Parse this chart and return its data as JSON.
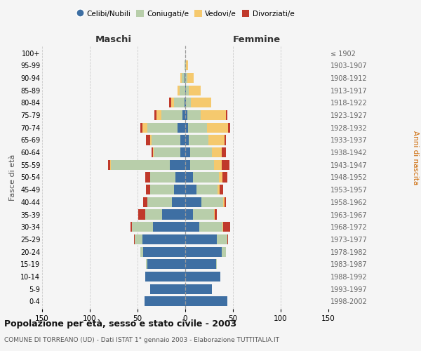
{
  "age_groups": [
    "0-4",
    "5-9",
    "10-14",
    "15-19",
    "20-24",
    "25-29",
    "30-34",
    "35-39",
    "40-44",
    "45-49",
    "50-54",
    "55-59",
    "60-64",
    "65-69",
    "70-74",
    "75-79",
    "80-84",
    "85-89",
    "90-94",
    "95-99",
    "100+"
  ],
  "birth_years": [
    "1998-2002",
    "1993-1997",
    "1988-1992",
    "1983-1987",
    "1978-1982",
    "1973-1977",
    "1968-1972",
    "1963-1967",
    "1958-1962",
    "1953-1957",
    "1948-1952",
    "1943-1947",
    "1938-1942",
    "1933-1937",
    "1928-1932",
    "1923-1927",
    "1918-1922",
    "1913-1917",
    "1908-1912",
    "1903-1907",
    "≤ 1902"
  ],
  "maschi": {
    "celibi": [
      43,
      37,
      42,
      40,
      44,
      45,
      34,
      24,
      14,
      12,
      10,
      16,
      5,
      5,
      8,
      3,
      1,
      0,
      1,
      0,
      0
    ],
    "coniugati": [
      0,
      0,
      0,
      1,
      3,
      8,
      22,
      18,
      26,
      25,
      27,
      62,
      28,
      30,
      32,
      22,
      11,
      6,
      3,
      1,
      0
    ],
    "vedovi": [
      0,
      0,
      0,
      0,
      0,
      0,
      0,
      0,
      0,
      0,
      0,
      1,
      1,
      2,
      5,
      5,
      3,
      2,
      1,
      0,
      0
    ],
    "divorziati": [
      0,
      0,
      0,
      0,
      0,
      1,
      1,
      7,
      4,
      4,
      5,
      2,
      1,
      4,
      2,
      2,
      2,
      0,
      0,
      0,
      0
    ]
  },
  "femmine": {
    "nubili": [
      44,
      28,
      37,
      32,
      38,
      33,
      15,
      8,
      17,
      12,
      8,
      5,
      5,
      4,
      3,
      2,
      1,
      1,
      0,
      0,
      0
    ],
    "coniugate": [
      0,
      0,
      0,
      1,
      5,
      11,
      24,
      22,
      23,
      22,
      27,
      25,
      23,
      20,
      20,
      14,
      5,
      3,
      2,
      1,
      0
    ],
    "vedove": [
      0,
      0,
      0,
      0,
      0,
      0,
      1,
      1,
      1,
      2,
      4,
      8,
      10,
      17,
      22,
      27,
      21,
      12,
      7,
      2,
      0
    ],
    "divorziate": [
      0,
      0,
      0,
      0,
      0,
      1,
      7,
      2,
      2,
      4,
      5,
      8,
      5,
      2,
      2,
      1,
      0,
      0,
      0,
      0,
      0
    ]
  },
  "colors": {
    "celibi": "#3e6fa3",
    "coniugati": "#b8ceaa",
    "vedovi": "#f5c96e",
    "divorziati": "#c0392b"
  },
  "xlim": 150,
  "title": "Popolazione per età, sesso e stato civile - 2003",
  "subtitle": "COMUNE DI TORREANO (UD) - Dati ISTAT 1° gennaio 2003 - Elaborazione TUTTITALIA.IT",
  "ylabel_left": "Fasce di età",
  "ylabel_right": "Anni di nascita",
  "xlabel_maschi": "Maschi",
  "xlabel_femmine": "Femmine",
  "bg_color": "#f5f5f5",
  "grid_color": "#cccccc"
}
